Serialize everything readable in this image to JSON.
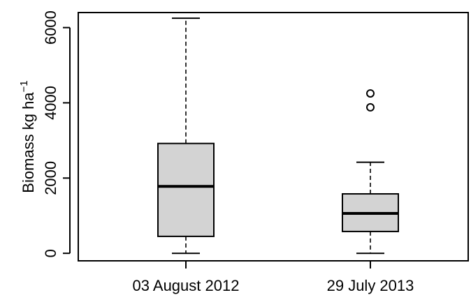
{
  "chart_data": {
    "type": "box",
    "title": "",
    "xlabel": "",
    "ylabel": {
      "text": "Biomass kg ha",
      "superscript": "−1"
    },
    "ylim": [
      -200,
      6400
    ],
    "yticks": [
      0,
      2000,
      4000,
      6000
    ],
    "yticks_labels": [
      "0",
      "2000",
      "4000",
      "6000"
    ],
    "categories": [
      "03 August 2012",
      "29 July 2013"
    ],
    "boxes": [
      {
        "category": "03 August 2012",
        "min": 0,
        "q1": 450,
        "median": 1780,
        "q3": 2920,
        "max": 6250,
        "outliers": []
      },
      {
        "category": "29 July 2013",
        "min": 0,
        "q1": 580,
        "median": 1060,
        "q3": 1580,
        "max": 2420,
        "outliers": [
          3880,
          4250
        ]
      }
    ],
    "box_fill": "#d3d3d3",
    "grid": false
  }
}
